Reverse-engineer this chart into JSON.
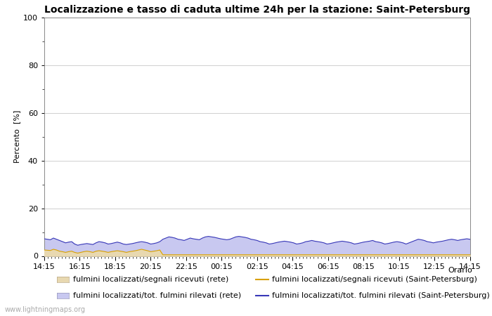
{
  "title": "Localizzazione e tasso di caduta ultime 24h per la stazione: Saint-Petersburg",
  "ylabel": "Percento  [%]",
  "xlabel_right": "Orario",
  "xlabels": [
    "14:15",
    "16:15",
    "18:15",
    "20:15",
    "22:15",
    "00:15",
    "02:15",
    "04:15",
    "06:15",
    "08:15",
    "10:15",
    "12:15",
    "14:15"
  ],
  "ylim": [
    0,
    100
  ],
  "yticks": [
    0,
    20,
    40,
    60,
    80,
    100
  ],
  "yminor": [
    10,
    30,
    50,
    70,
    90
  ],
  "fill_blue_values": [
    7.2,
    7.0,
    6.8,
    7.5,
    7.0,
    6.5,
    6.0,
    5.5,
    5.8,
    6.0,
    5.0,
    4.5,
    4.8,
    5.0,
    5.2,
    5.0,
    4.8,
    5.5,
    6.0,
    5.8,
    5.5,
    5.0,
    5.2,
    5.5,
    5.8,
    5.5,
    5.0,
    4.8,
    5.0,
    5.2,
    5.5,
    5.8,
    6.0,
    5.8,
    5.5,
    5.0,
    5.2,
    5.5,
    6.0,
    7.0,
    7.5,
    8.0,
    7.8,
    7.5,
    7.0,
    6.8,
    6.5,
    7.0,
    7.5,
    7.2,
    7.0,
    6.8,
    7.5,
    8.0,
    8.2,
    8.0,
    7.8,
    7.5,
    7.2,
    7.0,
    6.8,
    7.0,
    7.5,
    8.0,
    8.2,
    8.0,
    7.8,
    7.5,
    7.0,
    6.8,
    6.5,
    6.0,
    5.8,
    5.5,
    5.0,
    5.2,
    5.5,
    5.8,
    6.0,
    6.2,
    6.0,
    5.8,
    5.5,
    5.0,
    5.2,
    5.5,
    6.0,
    6.2,
    6.5,
    6.2,
    6.0,
    5.8,
    5.5,
    5.0,
    5.2,
    5.5,
    5.8,
    6.0,
    6.2,
    6.0,
    5.8,
    5.5,
    5.0,
    5.2,
    5.5,
    5.8,
    6.0,
    6.2,
    6.5,
    6.0,
    5.8,
    5.5,
    5.0,
    5.2,
    5.5,
    5.8,
    6.0,
    5.8,
    5.5,
    5.0,
    5.5,
    6.0,
    6.5,
    7.0,
    6.8,
    6.5,
    6.0,
    5.8,
    5.5,
    5.8,
    6.0,
    6.2,
    6.5,
    6.8,
    7.0,
    6.8,
    6.5,
    6.8,
    7.0,
    7.2,
    7.0
  ],
  "fill_tan_values": [
    2.5,
    2.4,
    2.3,
    2.8,
    2.5,
    2.0,
    1.8,
    1.5,
    1.8,
    2.0,
    1.5,
    1.2,
    1.5,
    1.8,
    2.0,
    1.8,
    1.5,
    2.0,
    2.2,
    2.0,
    1.8,
    1.5,
    1.8,
    2.0,
    2.2,
    2.0,
    1.8,
    1.5,
    1.8,
    2.0,
    2.2,
    2.5,
    2.8,
    2.5,
    2.2,
    1.8,
    2.0,
    2.2,
    2.5,
    0.5,
    0.5,
    0.5,
    0.5,
    0.5,
    0.5,
    0.5,
    0.5,
    0.5,
    0.5,
    0.5,
    0.5,
    0.5,
    0.5,
    0.5,
    0.5,
    0.5,
    0.5,
    0.5,
    0.5,
    0.5,
    0.5,
    0.5,
    0.5,
    0.5,
    0.5,
    0.5,
    0.5,
    0.5,
    0.5,
    0.5,
    0.5,
    0.5,
    0.5,
    0.5,
    0.5,
    0.5,
    0.5,
    0.5,
    0.5,
    0.5,
    0.5,
    0.5,
    0.5,
    0.5,
    0.5,
    0.5,
    0.5,
    0.5,
    0.5,
    0.5,
    0.5,
    0.5,
    0.5,
    0.5,
    0.5,
    0.5,
    0.5,
    0.5,
    0.5,
    0.5,
    0.5,
    0.5,
    0.5,
    0.5,
    0.5,
    0.5,
    0.5,
    0.5,
    0.5,
    0.5,
    0.5,
    0.5,
    0.5,
    0.5,
    0.5,
    0.5,
    0.5,
    0.5,
    0.5,
    0.5,
    0.5,
    0.5,
    0.5,
    0.5,
    0.5,
    0.5,
    0.5,
    0.5,
    0.5,
    0.5,
    0.5,
    0.5,
    0.5,
    0.5,
    0.5,
    0.5,
    0.5,
    0.5,
    0.5,
    0.5,
    0.5
  ],
  "line_orange_values": [
    2.5,
    2.4,
    2.3,
    2.8,
    2.5,
    2.0,
    1.8,
    1.5,
    1.8,
    2.0,
    1.5,
    1.2,
    1.5,
    1.8,
    2.0,
    1.8,
    1.5,
    2.0,
    2.2,
    2.0,
    1.8,
    1.5,
    1.8,
    2.0,
    2.2,
    2.0,
    1.8,
    1.5,
    1.8,
    2.0,
    2.2,
    2.5,
    2.8,
    2.5,
    2.2,
    1.8,
    2.0,
    2.2,
    2.5,
    0.5,
    0.5,
    0.5,
    0.5,
    0.5,
    0.5,
    0.5,
    0.5,
    0.5,
    0.5,
    0.5,
    0.5,
    0.5,
    0.5,
    0.5,
    0.5,
    0.5,
    0.5,
    0.5,
    0.5,
    0.5,
    0.5,
    0.5,
    0.5,
    0.5,
    0.5,
    0.5,
    0.5,
    0.5,
    0.5,
    0.5,
    0.5,
    0.5,
    0.5,
    0.5,
    0.5,
    0.5,
    0.5,
    0.5,
    0.5,
    0.5,
    0.5,
    0.5,
    0.5,
    0.5,
    0.5,
    0.5,
    0.5,
    0.5,
    0.5,
    0.5,
    0.5,
    0.5,
    0.5,
    0.5,
    0.5,
    0.5,
    0.5,
    0.5,
    0.5,
    0.5,
    0.5,
    0.5,
    0.5,
    0.5,
    0.5,
    0.5,
    0.5,
    0.5,
    0.5,
    0.5,
    0.5,
    0.5,
    0.5,
    0.5,
    0.5,
    0.5,
    0.5,
    0.5,
    0.5,
    0.5,
    0.5,
    0.5,
    0.5,
    0.5,
    0.5,
    0.5,
    0.5,
    0.5,
    0.5,
    0.5,
    0.5,
    0.5,
    0.5,
    0.5,
    0.5,
    0.5,
    0.5,
    0.5,
    0.5,
    0.5,
    0.5
  ],
  "line_blue_values": [
    7.2,
    7.0,
    6.8,
    7.5,
    7.0,
    6.5,
    6.0,
    5.5,
    5.8,
    6.0,
    5.0,
    4.5,
    4.8,
    5.0,
    5.2,
    5.0,
    4.8,
    5.5,
    6.0,
    5.8,
    5.5,
    5.0,
    5.2,
    5.5,
    5.8,
    5.5,
    5.0,
    4.8,
    5.0,
    5.2,
    5.5,
    5.8,
    6.0,
    5.8,
    5.5,
    5.0,
    5.2,
    5.5,
    6.0,
    7.0,
    7.5,
    8.0,
    7.8,
    7.5,
    7.0,
    6.8,
    6.5,
    7.0,
    7.5,
    7.2,
    7.0,
    6.8,
    7.5,
    8.0,
    8.2,
    8.0,
    7.8,
    7.5,
    7.2,
    7.0,
    6.8,
    7.0,
    7.5,
    8.0,
    8.2,
    8.0,
    7.8,
    7.5,
    7.0,
    6.8,
    6.5,
    6.0,
    5.8,
    5.5,
    5.0,
    5.2,
    5.5,
    5.8,
    6.0,
    6.2,
    6.0,
    5.8,
    5.5,
    5.0,
    5.2,
    5.5,
    6.0,
    6.2,
    6.5,
    6.2,
    6.0,
    5.8,
    5.5,
    5.0,
    5.2,
    5.5,
    5.8,
    6.0,
    6.2,
    6.0,
    5.8,
    5.5,
    5.0,
    5.2,
    5.5,
    5.8,
    6.0,
    6.2,
    6.5,
    6.0,
    5.8,
    5.5,
    5.0,
    5.2,
    5.5,
    5.8,
    6.0,
    5.8,
    5.5,
    5.0,
    5.5,
    6.0,
    6.5,
    7.0,
    6.8,
    6.5,
    6.0,
    5.8,
    5.5,
    5.8,
    6.0,
    6.2,
    6.5,
    6.8,
    7.0,
    6.8,
    6.5,
    6.8,
    7.0,
    7.2,
    7.0
  ],
  "fill_blue_color": "#c8c8f0",
  "fill_tan_color": "#e8d8b0",
  "line_orange_color": "#d8a000",
  "line_blue_color": "#3838b8",
  "bg_color": "#ffffff",
  "plot_bg_color": "#ffffff",
  "grid_color": "#c8c8c8",
  "title_fontsize": 10,
  "axis_fontsize": 8,
  "tick_fontsize": 8,
  "legend_fontsize": 8,
  "watermark": "www.lightningmaps.org"
}
